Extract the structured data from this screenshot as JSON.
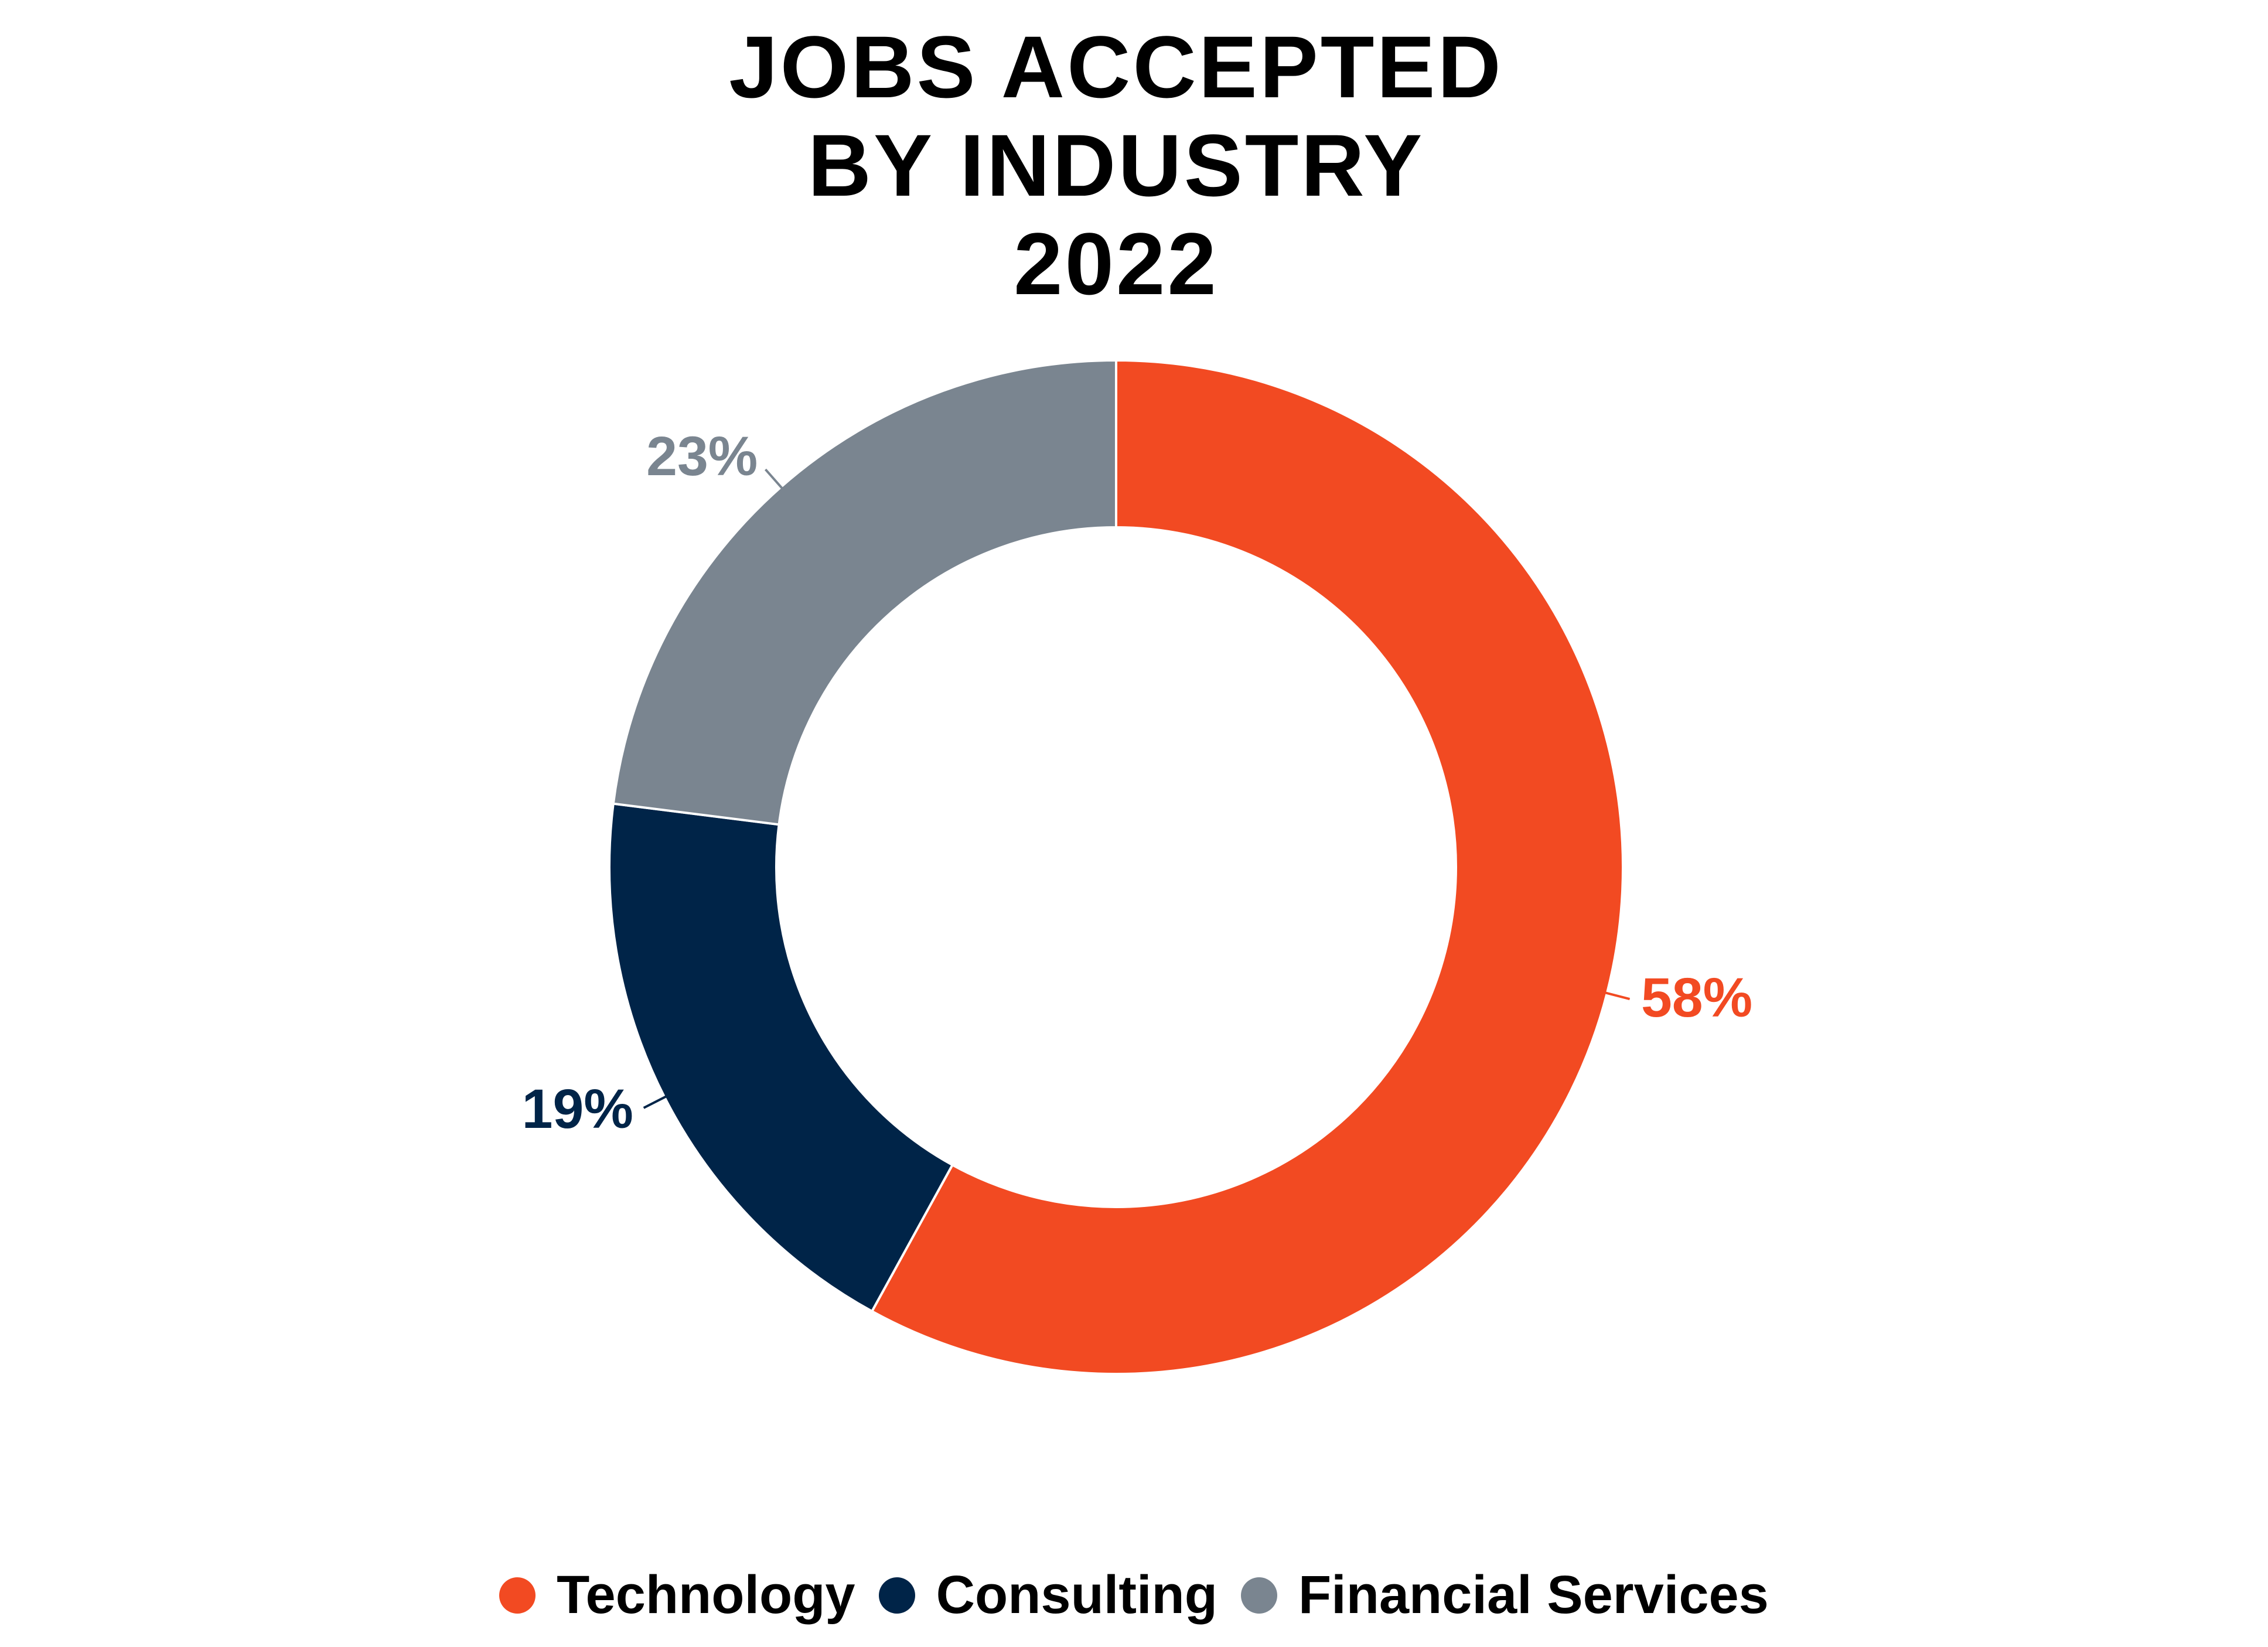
{
  "chart_data": {
    "type": "donut",
    "title": "JOBS ACCEPTED BY INDUSTRY 2022",
    "categories": [
      "Technology",
      "Consulting",
      "Financial Services"
    ],
    "values": [
      58,
      19,
      23
    ],
    "value_labels": [
      "58%",
      "19%",
      "23%"
    ],
    "colors": [
      "#f24a22",
      "#002448",
      "#7a8590"
    ]
  }
}
